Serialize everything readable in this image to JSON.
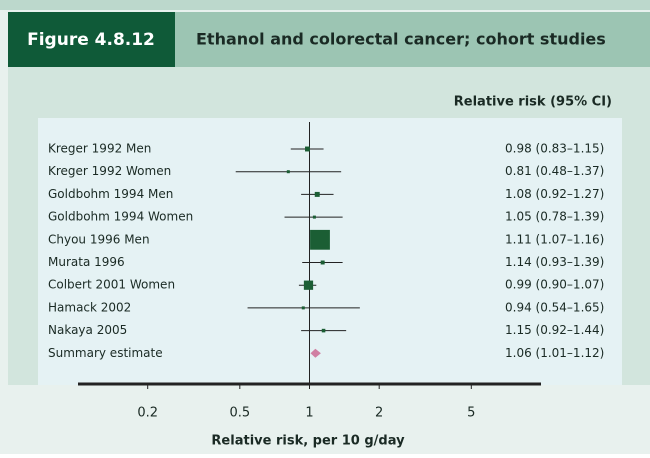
{
  "header": {
    "figure": "Figure 4.8.12",
    "title": "Ethanol and colorectal cancer; cohort studies"
  },
  "chart_data": {
    "type": "forest",
    "column_title": "Relative risk (95% CI)",
    "x_label": "Relative risk, per 10 g/day",
    "categories": [
      "Kreger 1992 Men",
      "Kreger 1992 Women",
      "Goldbohm 1994 Men",
      "Goldbohm 1994 Women",
      "Chyou 1996 Men",
      "Murata 1996",
      "Colbert 2001 Women",
      "Hamack 2002",
      "Nakaya 2005",
      "Summary estimate"
    ],
    "values": [
      0.98,
      0.81,
      1.08,
      1.05,
      1.11,
      1.14,
      0.99,
      0.94,
      1.15,
      1.06
    ],
    "ci_low": [
      0.83,
      0.48,
      0.92,
      0.78,
      1.07,
      0.93,
      0.9,
      0.54,
      0.92,
      1.01
    ],
    "ci_high": [
      1.15,
      1.37,
      1.27,
      1.39,
      1.16,
      1.39,
      1.07,
      1.65,
      1.44,
      1.12
    ],
    "value_labels": [
      "0.98 (0.83–1.15)",
      "0.81 (0.48–1.37)",
      "1.08 (0.92–1.27)",
      "1.05 (0.78–1.39)",
      "1.11 (1.07–1.16)",
      "1.14 (0.93–1.39)",
      "0.99 (0.90–1.07)",
      "0.94 (0.54–1.65)",
      "1.15 (0.92–1.44)",
      "1.06 (1.01–1.12)"
    ],
    "summary_color": "#d07fa2",
    "color": "#1b5e34",
    "log_scale": true,
    "xlim": [
      0.1,
      10
    ],
    "xticks": [
      0.2,
      0.5,
      1,
      2,
      5
    ]
  }
}
